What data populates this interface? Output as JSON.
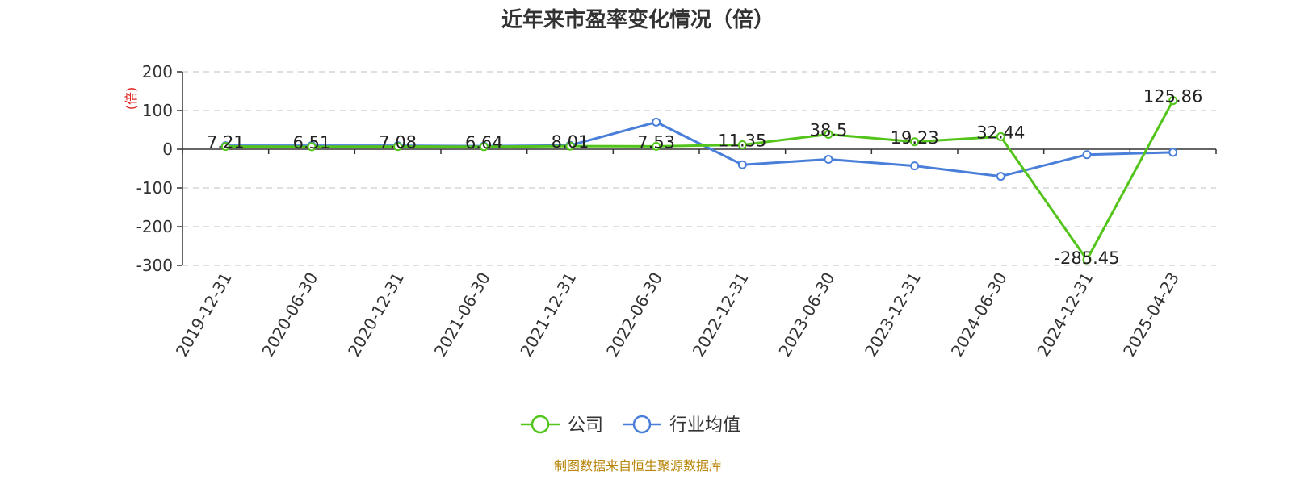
{
  "chart_data": {
    "type": "line",
    "title": "近年来市盈率变化情况（倍）",
    "ylabel": "(倍)",
    "xlabel": "",
    "ylim": [
      -300,
      200
    ],
    "yticks": [
      200,
      100,
      0,
      -100,
      -200,
      -300
    ],
    "grid": true,
    "legend_position": "bottom-center",
    "categories": [
      "2019-12-31",
      "2020-06-30",
      "2020-12-31",
      "2021-06-30",
      "2021-12-31",
      "2022-06-30",
      "2022-12-31",
      "2023-06-30",
      "2023-12-31",
      "2024-06-30",
      "2024-12-31",
      "2025-04-23"
    ],
    "series": [
      {
        "name": "公司",
        "color": "#52c41a",
        "values": [
          7.21,
          6.51,
          7.08,
          6.64,
          8.01,
          7.53,
          11.35,
          38.5,
          19.23,
          32.44,
          -285.45,
          125.86
        ],
        "labels": [
          "7.21",
          "6.51",
          "7.08",
          "6.64",
          "8.01",
          "7.53",
          "11.35",
          "38.5",
          "19.23",
          "32.44",
          "-285.45",
          "125.86"
        ]
      },
      {
        "name": "行业均值",
        "color": "#4a7fd9",
        "values": [
          9,
          9,
          9,
          8,
          10,
          70,
          -40,
          -26,
          -43,
          -70,
          -14,
          -8
        ]
      }
    ],
    "source": "制图数据来自恒生聚源数据库",
    "source_color": "#b8860b",
    "unit_color": "#e02020"
  }
}
